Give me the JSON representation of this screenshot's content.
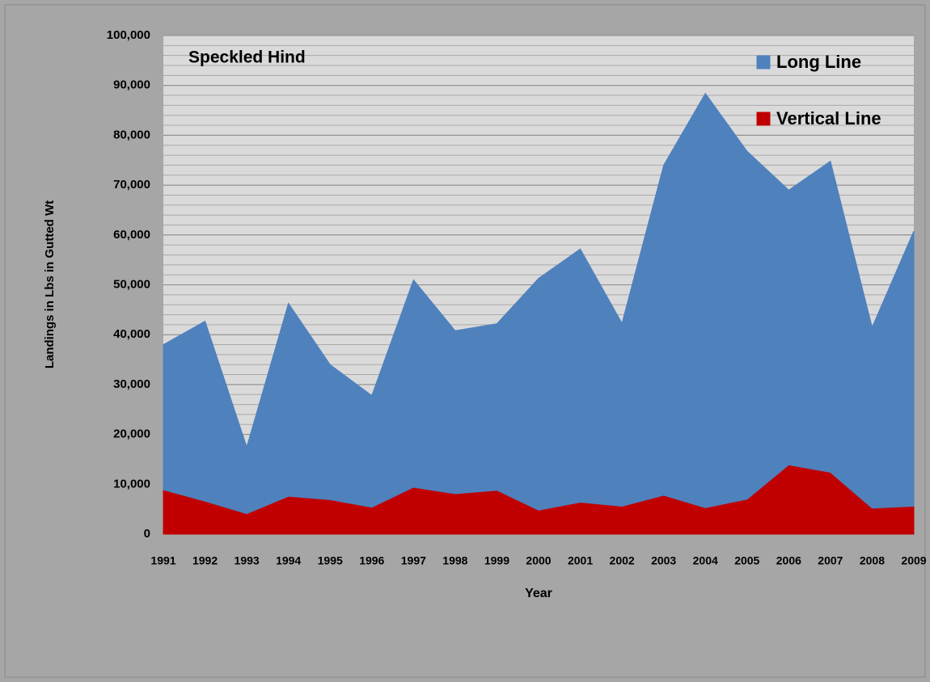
{
  "chart_data": {
    "type": "stacked_area",
    "title": "Speckled Hind",
    "x_label": "Year",
    "y_label": "Landings in Lbs in Gutted Wt",
    "categories": [
      "1991",
      "1992",
      "1993",
      "1994",
      "1995",
      "1996",
      "1997",
      "1998",
      "1999",
      "2000",
      "2001",
      "2002",
      "2003",
      "2004",
      "2005",
      "2006",
      "2007",
      "2008",
      "2009"
    ],
    "series": [
      {
        "name": "Long Line",
        "color": "#4f81bd",
        "values": [
          29100,
          36100,
          13400,
          38700,
          27100,
          22400,
          41600,
          32700,
          33400,
          46500,
          50800,
          36700,
          66200,
          83100,
          69800,
          55100,
          62400,
          36300,
          55200
        ]
      },
      {
        "name": "Vertical Line",
        "color": "#c00000",
        "values": [
          8900,
          6600,
          4100,
          7600,
          6900,
          5400,
          9400,
          8100,
          8800,
          4800,
          6400,
          5600,
          7800,
          5300,
          7000,
          13900,
          12400,
          5200,
          5600
        ]
      }
    ],
    "ylim": [
      0,
      100000
    ],
    "yticks": [
      0,
      {
        "value": 10000,
        "label": "10,000"
      },
      {
        "value": 20000,
        "label": "20,000"
      },
      {
        "value": 30000,
        "label": "30,000"
      },
      {
        "value": 40000,
        "label": "40,000"
      },
      {
        "value": 50000,
        "label": "50,000"
      },
      {
        "value": 60000,
        "label": "60,000"
      },
      {
        "value": 70000,
        "label": "70,000"
      },
      {
        "value": 80000,
        "label": "80,000"
      },
      {
        "value": 90000,
        "label": "90,000"
      },
      {
        "value": 100000,
        "label": "100,000"
      }
    ],
    "minor_grid_step": 2000,
    "grid": true,
    "legend": "top-right"
  }
}
